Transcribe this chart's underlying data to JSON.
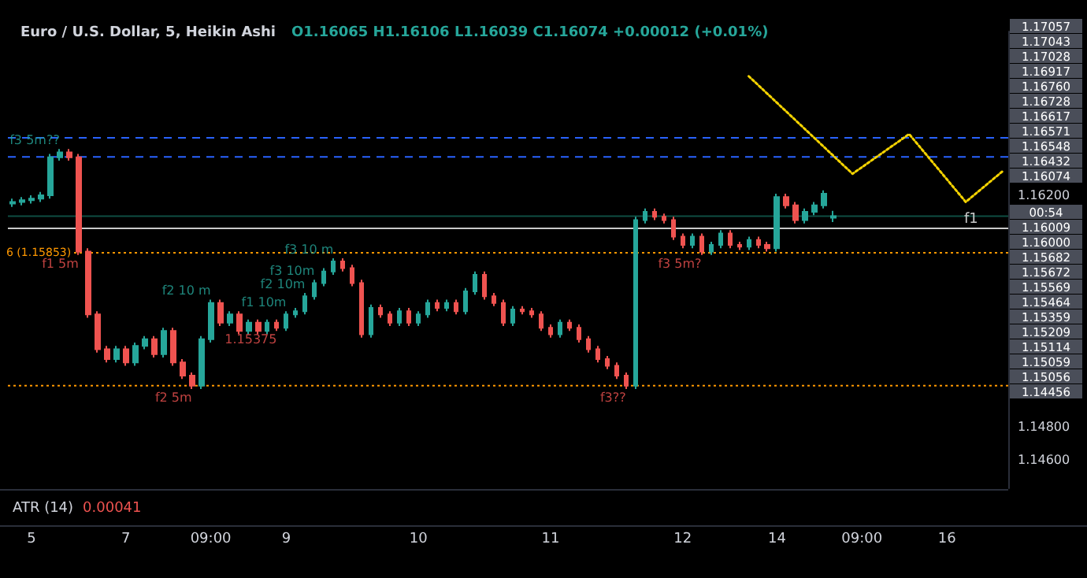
{
  "chart_data": [
    {
      "type": "candlestick",
      "title": "Euro / U.S. Dollar, 5, Heikin Ashi",
      "subtitle": "O1.16065 H1.16106 L1.16039 C1.16074 +0.00012 (+0.01%)",
      "categories": [
        null,
        null,
        "5",
        null,
        null,
        null,
        null,
        null,
        null,
        null,
        null,
        null,
        "7",
        null,
        null,
        null,
        null,
        null,
        null,
        null,
        null,
        "09:00",
        null,
        null,
        null,
        null,
        null,
        null,
        null,
        "9",
        null,
        null,
        null,
        null,
        null,
        null,
        null,
        null,
        null,
        null,
        null,
        null,
        null,
        "10",
        null,
        null,
        null,
        null,
        null,
        null,
        null,
        null,
        null,
        null,
        null,
        null,
        null,
        "11",
        null,
        null,
        null,
        null,
        null,
        null,
        null,
        null,
        null,
        null,
        null,
        null,
        null,
        "12",
        null,
        null,
        null,
        null,
        null,
        null,
        null,
        null,
        null,
        "14",
        null,
        null,
        null,
        null,
        null,
        null,
        null,
        null,
        "09:00",
        null,
        null,
        null,
        null,
        null,
        null,
        null,
        null,
        "16",
        null,
        null,
        null,
        null,
        null,
        null
      ],
      "ohlc": [
        [
          1.1615,
          1.1618,
          1.1613,
          1.1616
        ],
        [
          1.1616,
          1.1619,
          1.1614,
          1.1617
        ],
        [
          1.1617,
          1.162,
          1.1615,
          1.1618
        ],
        [
          1.1618,
          1.1622,
          1.1616,
          1.162
        ],
        [
          1.162,
          1.1645,
          1.1618,
          1.1643
        ],
        [
          1.1643,
          1.1648,
          1.1641,
          1.1646
        ],
        [
          1.1646,
          1.1648,
          1.1641,
          1.1643
        ],
        [
          1.1643,
          1.1645,
          1.1584,
          1.1586
        ],
        [
          1.1586,
          1.1588,
          1.1546,
          1.1548
        ],
        [
          1.1548,
          1.155,
          1.1525,
          1.1527
        ],
        [
          1.1527,
          1.1529,
          1.1519,
          1.1521
        ],
        [
          1.1521,
          1.1529,
          1.1519,
          1.1527
        ],
        [
          1.1527,
          1.1529,
          1.1517,
          1.1519
        ],
        [
          1.1519,
          1.1531,
          1.1517,
          1.1529
        ],
        [
          1.1529,
          1.1535,
          1.1527,
          1.1533
        ],
        [
          1.1533,
          1.1535,
          1.1522,
          1.1524
        ],
        [
          1.1524,
          1.154,
          1.1522,
          1.1538
        ],
        [
          1.1538,
          1.154,
          1.1517,
          1.1519
        ],
        [
          1.1519,
          1.1521,
          1.1509,
          1.1511
        ],
        [
          1.1511,
          1.1513,
          1.1503,
          1.1505
        ],
        [
          1.1505,
          1.1535,
          1.1503,
          1.1533
        ],
        [
          1.1533,
          1.1557,
          1.1531,
          1.1555
        ],
        [
          1.1555,
          1.1557,
          1.1541,
          1.1543
        ],
        [
          1.1543,
          1.155,
          1.1541,
          1.1548
        ],
        [
          1.1548,
          1.155,
          1.1536,
          1.1538
        ],
        [
          1.1538,
          1.1545,
          1.1536,
          1.1543
        ],
        [
          1.1543,
          1.1545,
          1.1536,
          1.1538
        ],
        [
          1.1538,
          1.1545,
          1.1536,
          1.1543
        ],
        [
          1.1543,
          1.1545,
          1.1538,
          1.154
        ],
        [
          1.154,
          1.155,
          1.1538,
          1.1548
        ],
        [
          1.1548,
          1.1552,
          1.1546,
          1.155
        ],
        [
          1.155,
          1.1561,
          1.1548,
          1.1559
        ],
        [
          1.1559,
          1.1569,
          1.1557,
          1.1567
        ],
        [
          1.1567,
          1.1576,
          1.1565,
          1.1574
        ],
        [
          1.1574,
          1.1582,
          1.1572,
          1.158
        ],
        [
          1.158,
          1.1582,
          1.1574,
          1.1576
        ],
        [
          1.1576,
          1.1578,
          1.1565,
          1.1567
        ],
        [
          1.1567,
          1.1569,
          1.1534,
          1.1536
        ],
        [
          1.1536,
          1.1554,
          1.1534,
          1.1552
        ],
        [
          1.1552,
          1.1554,
          1.1546,
          1.1548
        ],
        [
          1.1548,
          1.155,
          1.1541,
          1.1543
        ],
        [
          1.1543,
          1.1552,
          1.1541,
          1.155
        ],
        [
          1.155,
          1.1552,
          1.1541,
          1.1543
        ],
        [
          1.1543,
          1.155,
          1.1541,
          1.1548
        ],
        [
          1.1548,
          1.1557,
          1.1546,
          1.1555
        ],
        [
          1.1555,
          1.1557,
          1.155,
          1.1552
        ],
        [
          1.1552,
          1.1557,
          1.155,
          1.1555
        ],
        [
          1.1555,
          1.1557,
          1.1548,
          1.155
        ],
        [
          1.155,
          1.1564,
          1.1548,
          1.1562
        ],
        [
          1.1562,
          1.1574,
          1.156,
          1.1572
        ],
        [
          1.1572,
          1.1574,
          1.1557,
          1.1559
        ],
        [
          1.1559,
          1.1561,
          1.1553,
          1.1555
        ],
        [
          1.1555,
          1.1557,
          1.1541,
          1.1543
        ],
        [
          1.1543,
          1.1553,
          1.1541,
          1.1551
        ],
        [
          1.1551,
          1.1553,
          1.1548,
          1.155
        ],
        [
          1.155,
          1.1552,
          1.1546,
          1.1548
        ],
        [
          1.1548,
          1.155,
          1.1538,
          1.154
        ],
        [
          1.154,
          1.1542,
          1.1534,
          1.1536
        ],
        [
          1.1536,
          1.1545,
          1.1534,
          1.1543
        ],
        [
          1.1543,
          1.1545,
          1.1538,
          1.154
        ],
        [
          1.154,
          1.1542,
          1.1531,
          1.1533
        ],
        [
          1.1533,
          1.1535,
          1.1525,
          1.1527
        ],
        [
          1.1527,
          1.1529,
          1.1519,
          1.1521
        ],
        [
          1.1521,
          1.1523,
          1.1515,
          1.1517
        ],
        [
          1.1517,
          1.1519,
          1.1509,
          1.1511
        ],
        [
          1.1511,
          1.1513,
          1.1503,
          1.1505
        ],
        [
          1.1505,
          1.1607,
          1.1503,
          1.1605
        ],
        [
          1.1605,
          1.1612,
          1.1603,
          1.161
        ],
        [
          1.161,
          1.1612,
          1.1605,
          1.1607
        ],
        [
          1.1607,
          1.1609,
          1.1603,
          1.1605
        ],
        [
          1.1605,
          1.1607,
          1.1593,
          1.1595
        ],
        [
          1.1595,
          1.1597,
          1.1588,
          1.159
        ],
        [
          1.159,
          1.1597,
          1.1588,
          1.1595
        ],
        [
          1.1595,
          1.1597,
          1.1584,
          1.1586
        ],
        [
          1.1586,
          1.1592,
          1.1584,
          1.159
        ],
        [
          1.159,
          1.1599,
          1.1588,
          1.1597
        ],
        [
          1.1597,
          1.1599,
          1.1588,
          1.159
        ],
        [
          1.159,
          1.1592,
          1.1587,
          1.1589
        ],
        [
          1.1589,
          1.1595,
          1.1587,
          1.1593
        ],
        [
          1.1593,
          1.1595,
          1.1588,
          1.159
        ],
        [
          1.159,
          1.1592,
          1.1586,
          1.1588
        ],
        [
          1.1588,
          1.1621,
          1.1586,
          1.1619
        ],
        [
          1.1619,
          1.1621,
          1.1612,
          1.1614
        ],
        [
          1.1614,
          1.1616,
          1.1603,
          1.1605
        ],
        [
          1.1605,
          1.1612,
          1.1603,
          1.161
        ],
        [
          1.161,
          1.1616,
          1.1608,
          1.1614
        ],
        [
          1.1614,
          1.1623,
          1.1612,
          1.1621
        ],
        [
          1.16065,
          1.16106,
          1.16039,
          1.16074
        ],
        null,
        null,
        null,
        null,
        null,
        null,
        null,
        null,
        null,
        null,
        null,
        null,
        null,
        null,
        null,
        null,
        null,
        null
      ],
      "value_labels": [
        null,
        null,
        null,
        null,
        null,
        "f3 5m??",
        null,
        "f1 5m",
        null,
        null,
        null,
        null,
        null,
        null,
        null,
        null,
        null,
        null,
        null,
        "f2 5m",
        null,
        "f2 10 m",
        null,
        null,
        null,
        null,
        null,
        null,
        "1.15375",
        "f1 10m",
        null,
        "f2 10m",
        "f3 10m",
        null,
        "f3 10 m",
        null,
        null,
        null,
        null,
        null,
        null,
        null,
        null,
        null,
        null,
        null,
        null,
        null,
        null,
        null,
        null,
        null,
        null,
        null,
        null,
        null,
        null,
        null,
        null,
        null,
        null,
        null,
        null,
        null,
        null,
        "f3??",
        null,
        null,
        null,
        null,
        null,
        null,
        null,
        "f3 5m?",
        null,
        null,
        null,
        null,
        null,
        null,
        null,
        null,
        null,
        null,
        null,
        null,
        null,
        null,
        null,
        null,
        null,
        null,
        null,
        null,
        null,
        null,
        null,
        null,
        null,
        null,
        null,
        null,
        null,
        null,
        null,
        null
      ],
      "series": [
        {
          "type": "line",
          "color": "#f5d300",
          "line_style": "dotted",
          "values": [
            null,
            null,
            null,
            null,
            null,
            null,
            null,
            null,
            null,
            null,
            null,
            null,
            null,
            null,
            null,
            null,
            null,
            null,
            null,
            null,
            null,
            null,
            null,
            null,
            null,
            null,
            null,
            null,
            null,
            null,
            null,
            null,
            null,
            null,
            null,
            null,
            null,
            null,
            null,
            null,
            null,
            null,
            null,
            null,
            null,
            null,
            null,
            null,
            null,
            null,
            null,
            null,
            null,
            null,
            null,
            null,
            null,
            null,
            null,
            null,
            null,
            null,
            null,
            null,
            null,
            null,
            null,
            null,
            null,
            null,
            null,
            null,
            null,
            null,
            null,
            null,
            null,
            null,
            1.1692,
            null,
            null,
            null,
            null,
            null,
            null,
            null,
            null,
            null,
            null,
            1.1633,
            null,
            null,
            null,
            null,
            null,
            1.1657,
            null,
            null,
            null,
            null,
            null,
            1.1616,
            null,
            null,
            null,
            1.1635
          ]
        }
      ],
      "ylim": [
        1.1443,
        1.1719
      ],
      "yticks": [
        {
          "value": 1.162,
          "label": "1.16200"
        },
        {
          "value": 1.148,
          "label": "1.14800"
        },
        {
          "value": 1.146,
          "label": "1.14600"
        }
      ],
      "ref_lines": [
        {
          "axis": "y",
          "value": 1.16548,
          "color": "#2962ff",
          "line_style": "dashed"
        },
        {
          "axis": "y",
          "value": 1.16432,
          "color": "#2962ff",
          "line_style": "dashed"
        },
        {
          "axis": "y",
          "value": 1.16074,
          "color": "#0e4d42",
          "line_style": "solid"
        },
        {
          "axis": "y",
          "value": 1.16,
          "label": "f1",
          "color": "#c9c9c9",
          "line_style": "solid"
        },
        {
          "axis": "y",
          "value": 1.15853,
          "label": "6 (1.15853)",
          "color": "#ff9800",
          "line_style": "dotted"
        },
        {
          "axis": "y",
          "value": 1.1505,
          "color": "#ff9800",
          "line_style": "dotted"
        }
      ],
      "annotations": [
        "1.17057",
        "1.17043",
        "1.17028",
        "1.16917",
        "1.16760",
        "1.16728",
        "1.16617",
        "1.16571",
        "1.16548",
        "1.16432",
        "1.16074",
        "00:54",
        "1.16009",
        "1.16000",
        "1.15682",
        "1.15672",
        "1.15569",
        "1.15464",
        "1.15359",
        "1.15209",
        "1.15114",
        "1.15059",
        "1.15056",
        "1.14456"
      ]
    },
    {
      "type": "other",
      "annotations": [
        "ATR (14)",
        "0.00041"
      ]
    }
  ]
}
